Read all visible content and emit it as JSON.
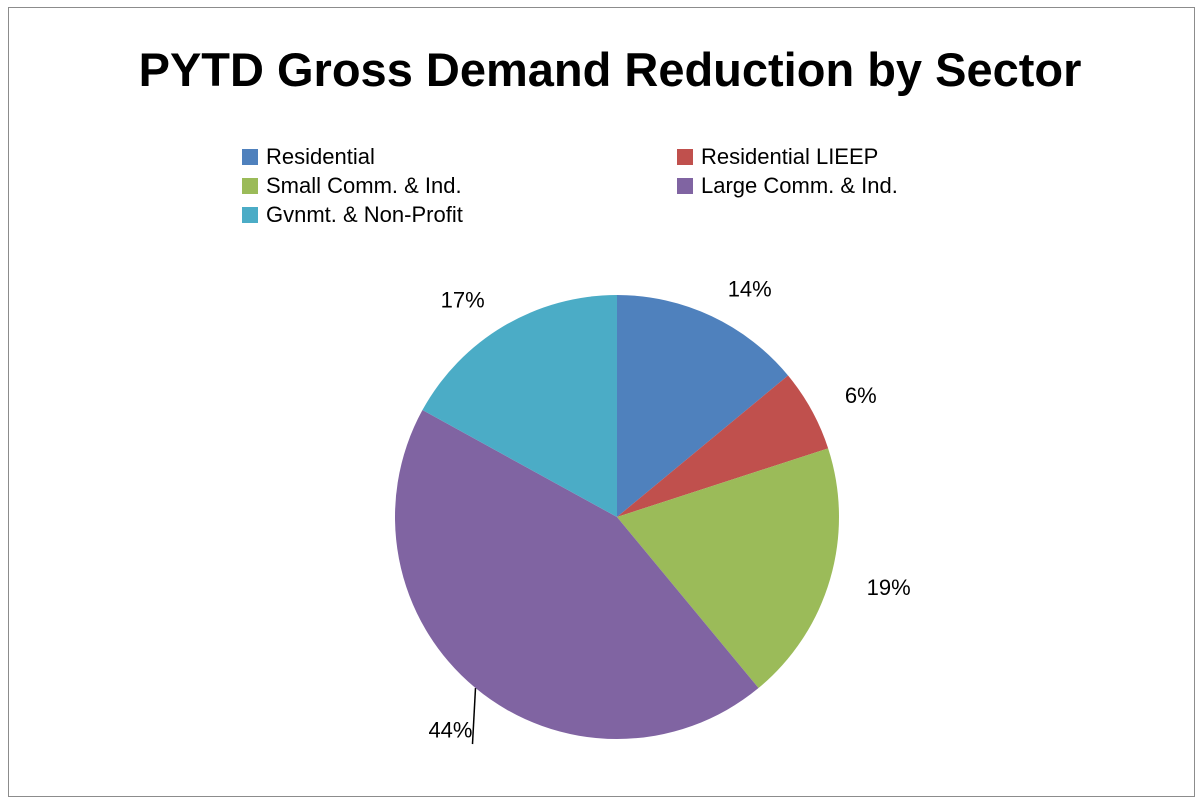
{
  "chart_data": {
    "type": "pie",
    "title": "PYTD Gross Demand Reduction by Sector",
    "legend_position": "top",
    "slices": [
      {
        "label": "Residential",
        "value": 14,
        "display": "14%",
        "color": "#4F81BD"
      },
      {
        "label": "Residential LIEEP",
        "value": 6,
        "display": "6%",
        "color": "#C0504D"
      },
      {
        "label": "Small Comm. & Ind.",
        "value": 19,
        "display": "19%",
        "color": "#9BBB59"
      },
      {
        "label": "Large Comm. & Ind.",
        "value": 44,
        "display": "44%",
        "color": "#8064A2"
      },
      {
        "label": "Gvnmt. & Non-Profit",
        "value": 17,
        "display": "17%",
        "color": "#4BACC6"
      }
    ]
  }
}
